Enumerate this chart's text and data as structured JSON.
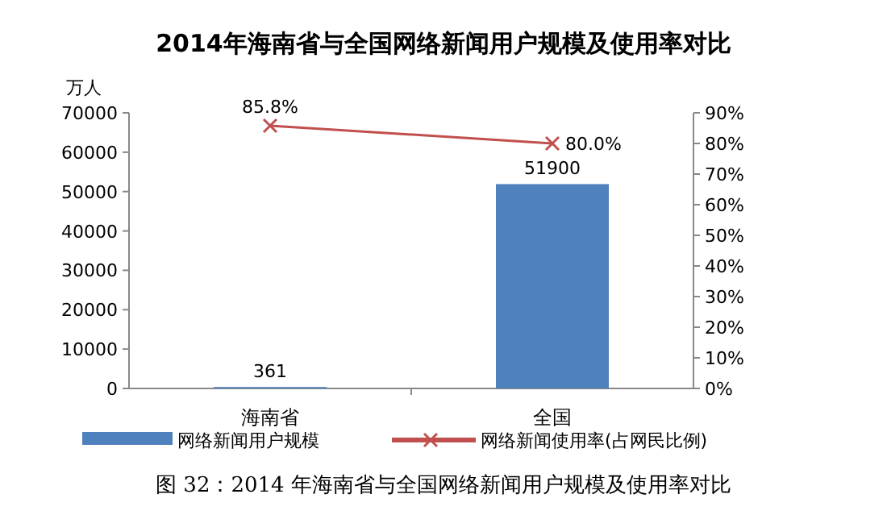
{
  "chart_data": {
    "type": "bar",
    "title": "2014年海南省与全国网络新闻用户规模及使用率对比",
    "ylabel": "万人",
    "categories": [
      "海南省",
      "全国"
    ],
    "series": [
      {
        "name": "网络新闻用户规模",
        "color": "#4f81bd",
        "values": [
          361,
          51900
        ],
        "value_labels": [
          "361",
          "51900"
        ]
      },
      {
        "name": "网络新闻使用率(占网民比例)",
        "type": "line",
        "axis": "y2",
        "marker": "cross",
        "color": "#c0504d",
        "values": [
          85.8,
          80.0
        ],
        "value_labels": [
          "85.8%",
          "80.0%"
        ]
      }
    ],
    "ylim": [
      0,
      70000
    ],
    "yticks": [
      0,
      10000,
      20000,
      30000,
      40000,
      50000,
      60000,
      70000
    ],
    "y2lim": [
      0,
      90
    ],
    "y2ticks": [
      {
        "value": 0,
        "label": "0%"
      },
      {
        "value": 10,
        "label": "10%"
      },
      {
        "value": 20,
        "label": "20%"
      },
      {
        "value": 30,
        "label": "30%"
      },
      {
        "value": 40,
        "label": "40%"
      },
      {
        "value": 50,
        "label": "50%"
      },
      {
        "value": 60,
        "label": "60%"
      },
      {
        "value": 70,
        "label": "70%"
      },
      {
        "value": 80,
        "label": "80%"
      },
      {
        "value": 90,
        "label": "90%"
      }
    ],
    "legend": "bottom",
    "annotations": [
      "图 32：2014 年海南省与全国网络新闻用户规模及使用率对比"
    ]
  }
}
